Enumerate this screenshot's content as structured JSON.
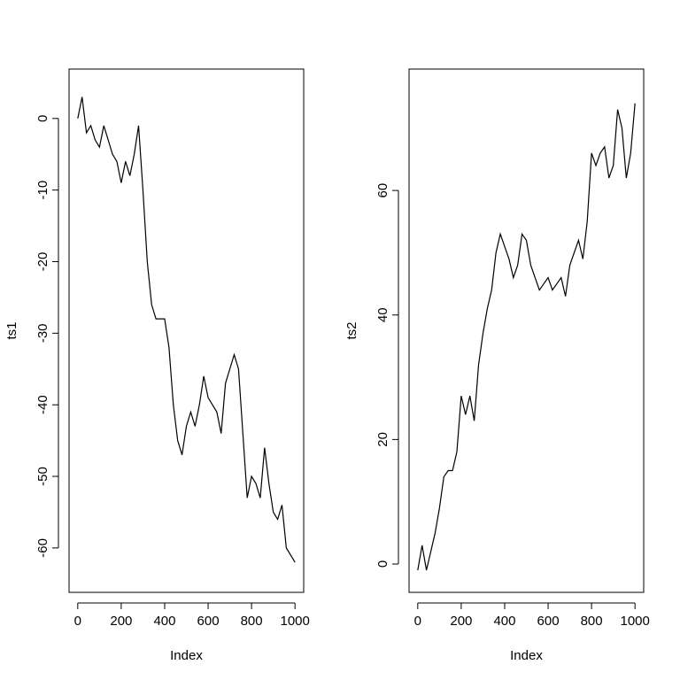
{
  "chart_data": [
    {
      "type": "line",
      "xlabel": "Index",
      "ylabel": "ts1",
      "color": "#000000",
      "x": [
        0,
        20,
        40,
        60,
        80,
        100,
        120,
        140,
        160,
        180,
        200,
        220,
        240,
        260,
        280,
        300,
        320,
        340,
        360,
        380,
        400,
        420,
        440,
        460,
        480,
        500,
        520,
        540,
        560,
        580,
        600,
        620,
        640,
        660,
        680,
        700,
        720,
        740,
        760,
        780,
        800,
        820,
        840,
        860,
        880,
        900,
        920,
        940,
        960,
        980,
        1000
      ],
      "values": [
        0,
        3,
        -2,
        -1,
        -3,
        -4,
        -1,
        -3,
        -5,
        -6,
        -9,
        -6,
        -8,
        -5,
        -1,
        -10,
        -20,
        -26,
        -28,
        -28,
        -28,
        -32,
        -40,
        -45,
        -47,
        -43,
        -41,
        -43,
        -40,
        -36,
        -39,
        -40,
        -41,
        -44,
        -37,
        -35,
        -33,
        -35,
        -44,
        -53,
        -50,
        -51,
        -53,
        -46,
        -51,
        -55,
        -56,
        -54,
        -60,
        -61,
        -62
      ],
      "xlim": [
        -40,
        1040
      ],
      "ylim": [
        -66.2,
        6.9
      ],
      "xticks": [
        0,
        200,
        400,
        600,
        800,
        1000
      ],
      "yticks": [
        -60,
        -50,
        -40,
        -30,
        -20,
        -10,
        0
      ]
    },
    {
      "type": "line",
      "xlabel": "Index",
      "ylabel": "ts2",
      "color": "#000000",
      "x": [
        0,
        20,
        40,
        60,
        80,
        100,
        120,
        140,
        160,
        180,
        200,
        220,
        240,
        260,
        280,
        300,
        320,
        340,
        360,
        380,
        400,
        420,
        440,
        460,
        480,
        500,
        520,
        540,
        560,
        580,
        600,
        620,
        640,
        660,
        680,
        700,
        720,
        740,
        760,
        780,
        800,
        820,
        840,
        860,
        880,
        900,
        920,
        940,
        960,
        980,
        1000
      ],
      "values": [
        -1,
        3,
        -1,
        2,
        5,
        9,
        14,
        15,
        15,
        18,
        27,
        24,
        27,
        23,
        32,
        37,
        41,
        44,
        50,
        53,
        51,
        49,
        46,
        48,
        53,
        52,
        48,
        46,
        44,
        45,
        46,
        44,
        45,
        46,
        43,
        48,
        50,
        52,
        49,
        55,
        66,
        64,
        66,
        67,
        62,
        64,
        73,
        70,
        62,
        66,
        74
      ],
      "xlim": [
        -40,
        1040
      ],
      "ylim": [
        -4.55,
        79.5
      ],
      "xticks": [
        0,
        200,
        400,
        600,
        800,
        1000
      ],
      "yticks": [
        0,
        20,
        40,
        60
      ]
    }
  ]
}
